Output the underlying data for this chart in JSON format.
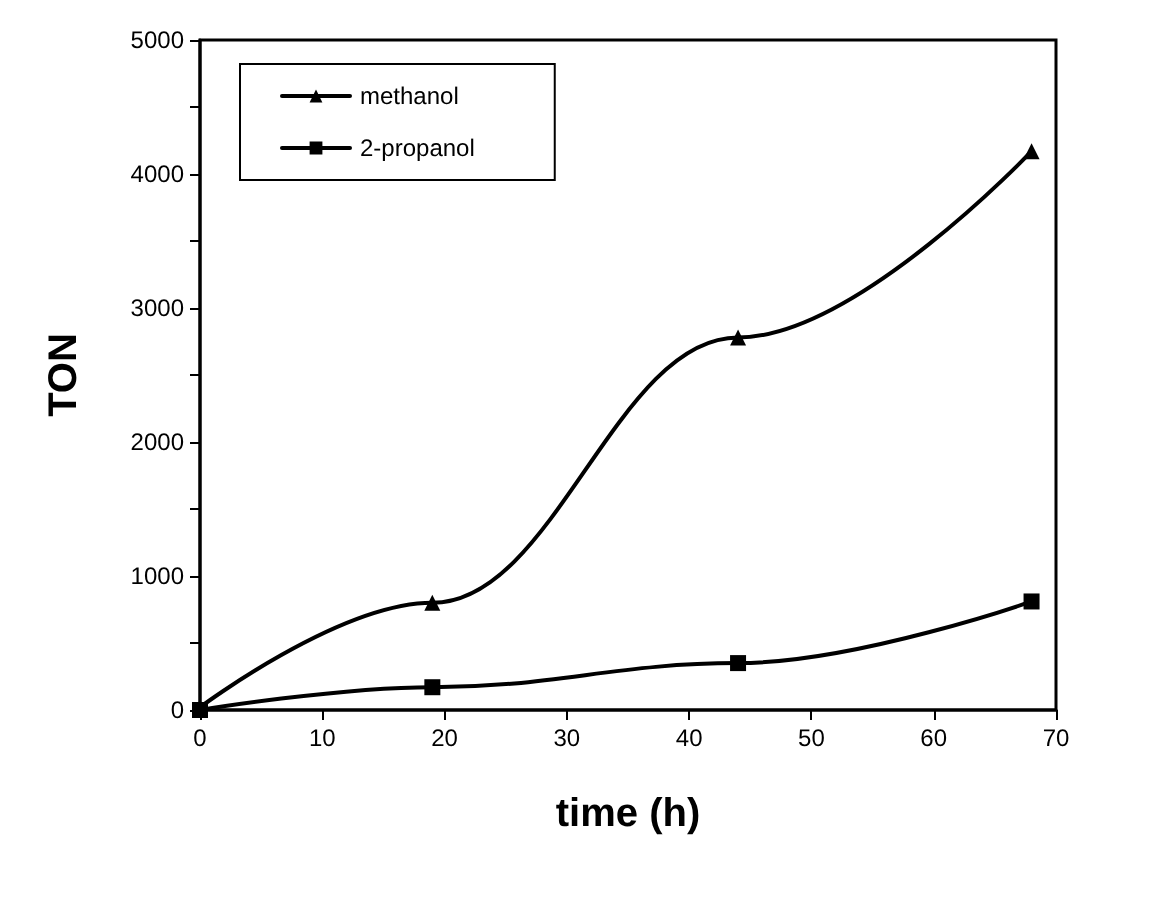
{
  "chart_data": {
    "type": "line",
    "xlabel": "time (h)",
    "ylabel": "TON",
    "xlim": [
      0,
      70
    ],
    "xticks": [
      0,
      10,
      20,
      30,
      40,
      50,
      60,
      70
    ],
    "ylim": [
      0,
      5000
    ],
    "yticks": [
      0,
      {
        "value": 500,
        "label": null
      },
      1000,
      {
        "value": 1500,
        "label": null
      },
      2000,
      {
        "value": 2500,
        "label": null
      },
      3000,
      {
        "value": 3500,
        "label": null
      },
      4000,
      {
        "value": 4500,
        "label": null
      },
      5000
    ],
    "grid": false,
    "legend": "top left",
    "line_style": "solid",
    "series": [
      {
        "name": "methanol",
        "color": "#000000",
        "marker": "triangle",
        "x": [
          0,
          19,
          44,
          68
        ],
        "values": [
          20,
          800,
          2780,
          4170
        ]
      },
      {
        "name": "2-propanol",
        "color": "#000000",
        "marker": "square",
        "x": [
          0,
          19,
          44,
          68
        ],
        "values": [
          0,
          170,
          350,
          810
        ]
      }
    ]
  }
}
